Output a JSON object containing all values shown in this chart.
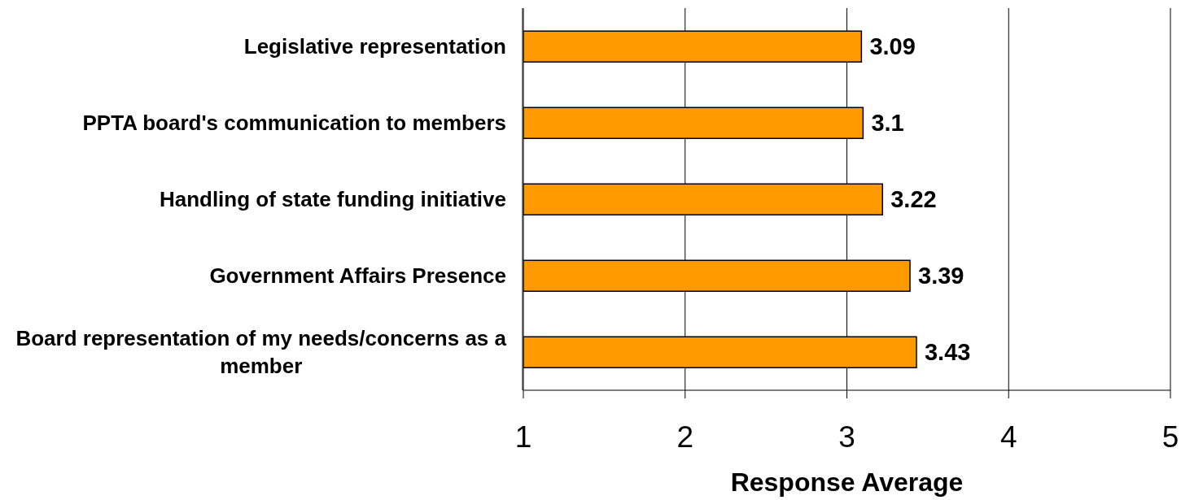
{
  "chart_data": {
    "type": "bar",
    "orientation": "horizontal",
    "categories": [
      "Legislative representation",
      "PPTA board's communication to members",
      "Handling of state funding initiative",
      "Government Affairs Presence",
      "Board representation of my needs/concerns as a member"
    ],
    "values": [
      3.09,
      3.1,
      3.22,
      3.39,
      3.43
    ],
    "color": "#ff9900",
    "xlim": [
      1,
      5
    ],
    "xticks": [
      1,
      2,
      3,
      4,
      5
    ],
    "xlabel": "Response Average",
    "grid": "x",
    "data_labels": true
  }
}
